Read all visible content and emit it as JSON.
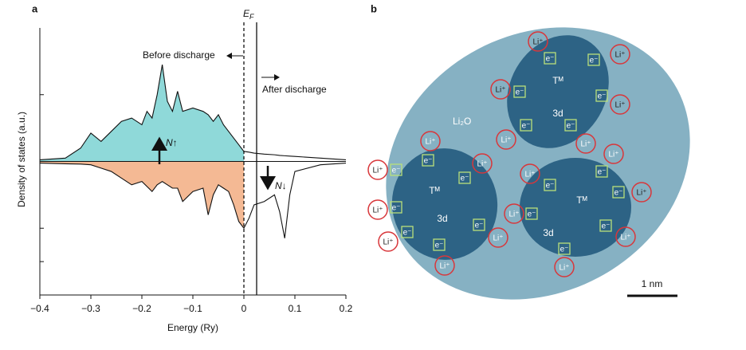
{
  "chart_data": {
    "type": "line",
    "panel_label": "a",
    "ylabel": "Density of states (a.u.)",
    "xlabel": "Energy (Ry)",
    "x": [
      -0.4,
      -0.35,
      -0.32,
      -0.3,
      -0.28,
      -0.26,
      -0.24,
      -0.22,
      -0.2,
      -0.19,
      -0.18,
      -0.17,
      -0.16,
      -0.15,
      -0.14,
      -0.13,
      -0.12,
      -0.1,
      -0.08,
      -0.07,
      -0.06,
      -0.05,
      -0.04,
      -0.03,
      -0.02,
      -0.01,
      0,
      0.01,
      0.02,
      0.04,
      0.06,
      0.07,
      0.08,
      0.09,
      0.1,
      0.15,
      0.2
    ],
    "series": [
      {
        "name": "N↑",
        "color": "#8fd9d9",
        "values": [
          0.05,
          0.1,
          0.4,
          0.85,
          0.6,
          0.9,
          1.2,
          1.3,
          1.1,
          1.5,
          1.3,
          2.0,
          2.9,
          1.8,
          1.5,
          2.1,
          1.5,
          1.6,
          1.5,
          1.4,
          1.2,
          1.4,
          1.1,
          0.9,
          0.7,
          0.5,
          0.3,
          0.28,
          0.25,
          0.22,
          0.2,
          0.18,
          0.17,
          0.16,
          0.15,
          0.1,
          0.05
        ]
      },
      {
        "name": "N↓",
        "color": "#f4b994",
        "values": [
          -0.05,
          -0.07,
          -0.08,
          -0.1,
          -0.2,
          -0.3,
          -0.5,
          -0.7,
          -0.6,
          -0.75,
          -0.9,
          -0.7,
          -0.6,
          -0.7,
          -0.8,
          -0.8,
          -1.2,
          -0.9,
          -0.8,
          -1.6,
          -1.0,
          -0.7,
          -0.8,
          -0.9,
          -1.3,
          -1.8,
          -2.0,
          -1.7,
          -1.3,
          -1.2,
          -1.0,
          -1.5,
          -2.3,
          -1.0,
          -0.3,
          -0.1,
          -0.05
        ]
      }
    ],
    "xlim": [
      -0.4,
      0.2
    ],
    "xticks": [
      {
        "value": -0.4,
        "label": "−0.4"
      },
      {
        "value": -0.3,
        "label": "−0.3"
      },
      {
        "value": -0.2,
        "label": "−0.2"
      },
      {
        "value": -0.1,
        "label": "−0.1"
      },
      0,
      0.1,
      0.2
    ],
    "ylim": [
      -4,
      4
    ],
    "yticks": [
      -3,
      -2,
      0,
      2
    ],
    "vlines": [
      {
        "x": 0,
        "style": "dashed"
      },
      {
        "x": 0.025,
        "style": "solid"
      }
    ],
    "ef_symbol": "E",
    "ef_subscript": "F",
    "before_label": "Before discharge",
    "after_label": "After discharge"
  },
  "diagram": {
    "panel_label": "b",
    "matrix_label": "Li₂O",
    "clusters": [
      {
        "label": "Tᴹ",
        "orbital": "3d"
      },
      {
        "label": "Tᴹ",
        "orbital": "3d"
      },
      {
        "label": "Tᴹ",
        "orbital": "3d"
      }
    ],
    "ions": [
      "Li⁺",
      "Li⁺",
      "Li⁺",
      "Li⁺",
      "Li⁺",
      "Li⁺",
      "Li⁺",
      "Li⁺",
      "Li⁺",
      "Li⁺",
      "Li⁺",
      "Li⁺",
      "Li⁺",
      "Li⁺",
      "Li⁺",
      "Li⁺",
      "Li⁺",
      "Li⁺",
      "Li⁺"
    ],
    "electrons": [
      "e⁻",
      "e⁻",
      "e⁻",
      "e⁻",
      "e⁻",
      "e⁻",
      "e⁻",
      "e⁻",
      "e⁻",
      "e⁻",
      "e⁻",
      "e⁻",
      "e⁻",
      "e⁻",
      "e⁻",
      "e⁻",
      "e⁻",
      "e⁻",
      "e⁻"
    ],
    "scale_bar": "1 nm"
  }
}
